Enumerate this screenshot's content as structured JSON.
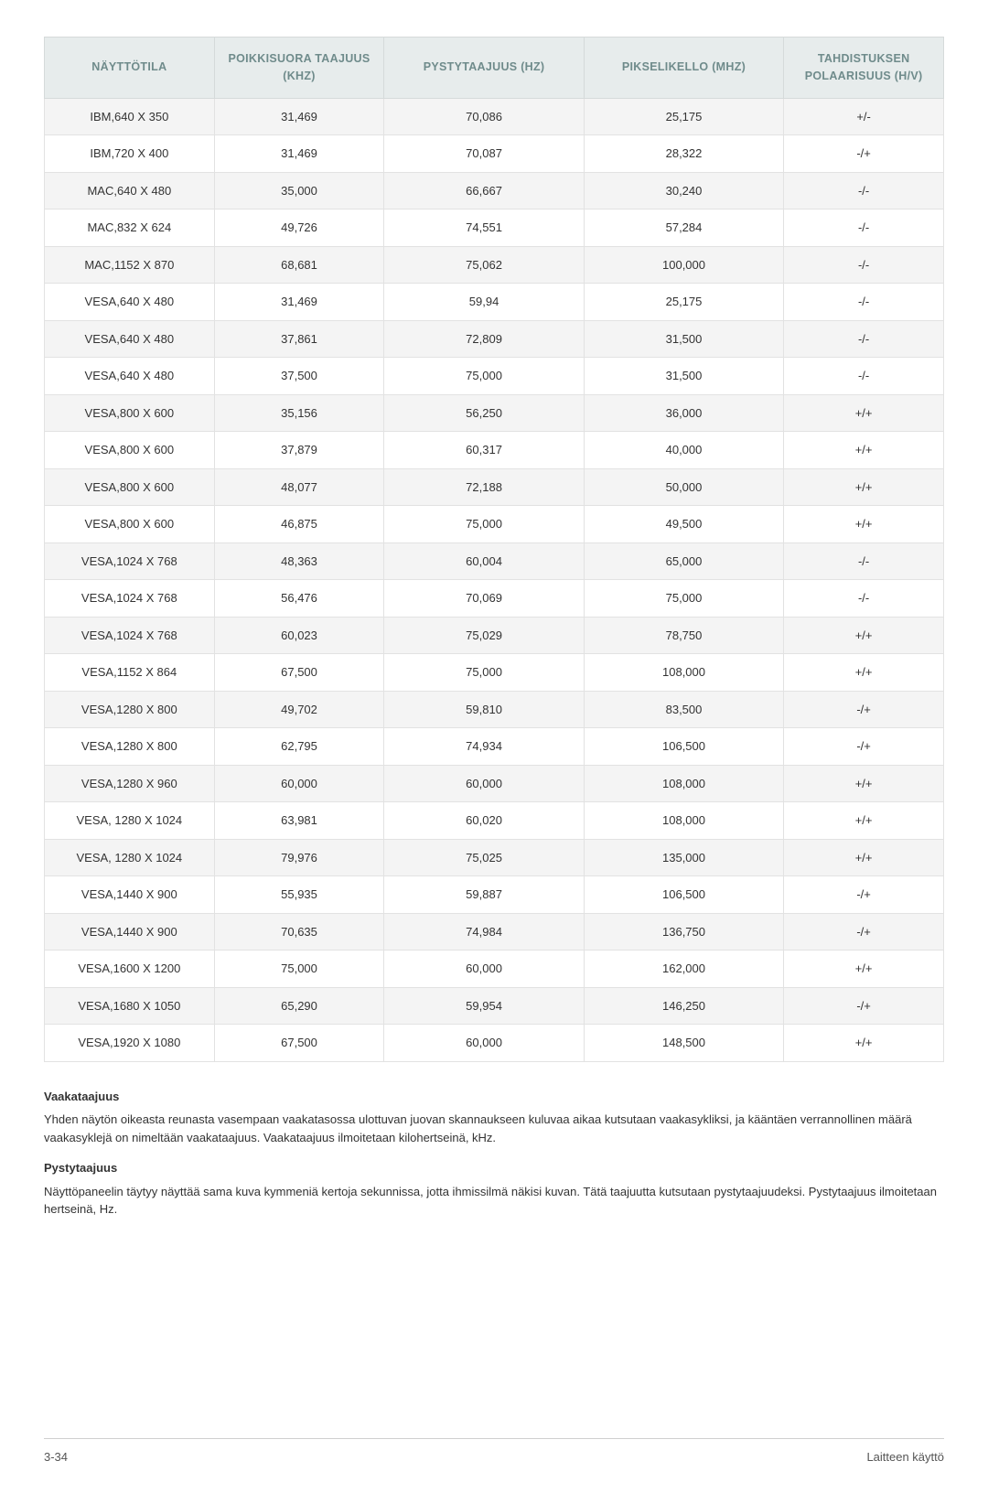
{
  "table": {
    "columns": [
      "NÄYTTÖTILA",
      "POIKKISUORA TAAJUUS (KHZ)",
      "PYSTYTAAJUUS (HZ)",
      "PIKSELIKELLO (MHZ)",
      "TAHDISTUKSEN POLAARISUUS (H/V)"
    ],
    "column_widths_pct": [
      17,
      17,
      20,
      20,
      16
    ],
    "header_bg": "#e7ecec",
    "header_color": "#6f8b8b",
    "row_odd_bg": "#f4f4f4",
    "row_even_bg": "#ffffff",
    "border_color": "#e2e2e2",
    "rows": [
      [
        "IBM,640 X 350",
        "31,469",
        "70,086",
        "25,175",
        "+/-"
      ],
      [
        "IBM,720 X 400",
        "31,469",
        "70,087",
        "28,322",
        "-/+"
      ],
      [
        "MAC,640 X 480",
        "35,000",
        "66,667",
        "30,240",
        "-/-"
      ],
      [
        "MAC,832 X 624",
        "49,726",
        "74,551",
        "57,284",
        "-/-"
      ],
      [
        "MAC,1152 X 870",
        "68,681",
        "75,062",
        "100,000",
        "-/-"
      ],
      [
        "VESA,640 X 480",
        "31,469",
        "59,94",
        "25,175",
        "-/-"
      ],
      [
        "VESA,640 X 480",
        "37,861",
        "72,809",
        "31,500",
        "-/-"
      ],
      [
        "VESA,640 X 480",
        "37,500",
        "75,000",
        "31,500",
        "-/-"
      ],
      [
        "VESA,800 X 600",
        "35,156",
        "56,250",
        "36,000",
        "+/+"
      ],
      [
        "VESA,800 X 600",
        "37,879",
        "60,317",
        "40,000",
        "+/+"
      ],
      [
        "VESA,800 X 600",
        "48,077",
        "72,188",
        "50,000",
        "+/+"
      ],
      [
        "VESA,800 X 600",
        "46,875",
        "75,000",
        "49,500",
        "+/+"
      ],
      [
        "VESA,1024 X 768",
        "48,363",
        "60,004",
        "65,000",
        "-/-"
      ],
      [
        "VESA,1024 X 768",
        "56,476",
        "70,069",
        "75,000",
        "-/-"
      ],
      [
        "VESA,1024 X 768",
        "60,023",
        "75,029",
        "78,750",
        "+/+"
      ],
      [
        "VESA,1152 X 864",
        "67,500",
        "75,000",
        "108,000",
        "+/+"
      ],
      [
        "VESA,1280 X 800",
        "49,702",
        "59,810",
        "83,500",
        "-/+"
      ],
      [
        "VESA,1280 X 800",
        "62,795",
        "74,934",
        "106,500",
        "-/+"
      ],
      [
        "VESA,1280 X 960",
        "60,000",
        "60,000",
        "108,000",
        "+/+"
      ],
      [
        "VESA, 1280 X 1024",
        "63,981",
        "60,020",
        "108,000",
        "+/+"
      ],
      [
        "VESA, 1280 X 1024",
        "79,976",
        "75,025",
        "135,000",
        "+/+"
      ],
      [
        "VESA,1440 X 900",
        "55,935",
        "59,887",
        "106,500",
        "-/+"
      ],
      [
        "VESA,1440 X 900",
        "70,635",
        "74,984",
        "136,750",
        "-/+"
      ],
      [
        "VESA,1600 X 1200",
        "75,000",
        "60,000",
        "162,000",
        "+/+"
      ],
      [
        "VESA,1680 X 1050",
        "65,290",
        "59,954",
        "146,250",
        "-/+"
      ],
      [
        "VESA,1920 X 1080",
        "67,500",
        "60,000",
        "148,500",
        "+/+"
      ]
    ]
  },
  "sections": {
    "heading1": "Vaakataajuus",
    "para1": "Yhden näytön oikeasta reunasta vasempaan vaakatasossa ulottuvan juovan skannaukseen kuluvaa aikaa kutsutaan vaakasykliksi, ja kääntäen verrannollinen määrä vaakasyklejä on nimeltään vaakataajuus. Vaakataajuus ilmoitetaan kilohertseinä, kHz.",
    "heading2": "Pystytaajuus",
    "para2": "Näyttöpaneelin täytyy näyttää sama kuva kymmeniä kertoja sekunnissa, jotta ihmissilmä näkisi kuvan. Tätä taajuutta kutsutaan pystytaajuudeksi. Pystytaajuus ilmoitetaan hertseinä, Hz."
  },
  "footer": {
    "left": "3-34",
    "right": "Laitteen käyttö"
  },
  "page": {
    "background_color": "#ffffff",
    "text_color": "#333333",
    "body_fontsize": 13
  }
}
